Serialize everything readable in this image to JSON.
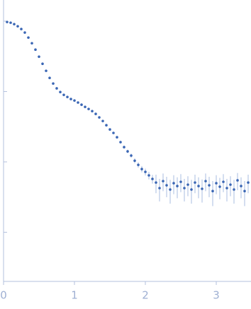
{
  "chart_data": {
    "type": "scatter",
    "x": [
      0.05,
      0.1,
      0.15,
      0.2,
      0.25,
      0.3,
      0.35,
      0.4,
      0.45,
      0.5,
      0.55,
      0.6,
      0.65,
      0.7,
      0.75,
      0.8,
      0.85,
      0.9,
      0.95,
      1.0,
      1.05,
      1.1,
      1.15,
      1.2,
      1.25,
      1.3,
      1.35,
      1.4,
      1.45,
      1.5,
      1.55,
      1.6,
      1.65,
      1.7,
      1.75,
      1.8,
      1.85,
      1.9,
      1.95,
      2.0,
      2.05,
      2.1,
      2.15,
      2.2,
      2.25,
      2.3,
      2.35,
      2.4,
      2.45,
      2.5,
      2.55,
      2.6,
      2.65,
      2.7,
      2.75,
      2.8,
      2.85,
      2.9,
      2.95,
      3.0,
      3.05,
      3.1,
      3.15,
      3.2,
      3.25,
      3.3,
      3.35,
      3.4,
      3.45
    ],
    "values": [
      0.973,
      0.951,
      0.908,
      0.847,
      0.773,
      0.689,
      0.585,
      0.486,
      0.394,
      0.313,
      0.248,
      0.197,
      0.156,
      0.13,
      0.111,
      0.0984,
      0.0897,
      0.0837,
      0.0782,
      0.0746,
      0.0697,
      0.065,
      0.0605,
      0.0565,
      0.0527,
      0.0481,
      0.0429,
      0.0381,
      0.0332,
      0.0289,
      0.0258,
      0.0224,
      0.0191,
      0.0162,
      0.0141,
      0.0123,
      0.0104,
      0.00908,
      0.00791,
      0.00721,
      0.00643,
      0.00572,
      0.00509,
      0.00424,
      0.00533,
      0.00465,
      0.00405,
      0.00498,
      0.00454,
      0.00521,
      0.00424,
      0.00475,
      0.00405,
      0.00509,
      0.00454,
      0.00414,
      0.00533,
      0.00465,
      0.00385,
      0.00498,
      0.00444,
      0.00521,
      0.00424,
      0.00475,
      0.00405,
      0.00546,
      0.00454,
      0.00385,
      0.00509
    ],
    "errors": [
      0.0005,
      0.0005,
      0.0005,
      0.0005,
      0.0005,
      0.0005,
      0.0005,
      0.0005,
      0.0005,
      0.0005,
      0.0005,
      0.0005,
      0.0005,
      0.0005,
      0.0005,
      0.0005,
      0.0005,
      0.0005,
      0.0005,
      0.0005,
      0.0005,
      0.0005,
      0.0005,
      0.0005,
      0.0005,
      0.0005,
      0.0005,
      0.0005,
      0.0005,
      0.0005,
      0.0008,
      0.0008,
      0.0008,
      0.0008,
      0.0008,
      0.0008,
      0.0008,
      0.0008,
      0.0008,
      0.0008,
      0.0008,
      0.0008,
      0.0015,
      0.0015,
      0.0015,
      0.0015,
      0.0015,
      0.0015,
      0.0015,
      0.0015,
      0.0015,
      0.0015,
      0.0015,
      0.0015,
      0.0015,
      0.0015,
      0.0015,
      0.0015,
      0.0015,
      0.0015,
      0.0015,
      0.0015,
      0.0015,
      0.0015,
      0.0015,
      0.0015,
      0.0015,
      0.0015,
      0.0015
    ],
    "color": "#3a66b4",
    "error_color": "#aabde2",
    "axis_color": "#b3c0dd",
    "xlim": [
      0,
      3.49
    ],
    "ylim": [
      0.0002,
      2
    ],
    "log_y": true,
    "xticks": [
      0,
      1,
      2,
      3
    ],
    "yticks": [
      0.001,
      0.01,
      0.1,
      1
    ]
  }
}
